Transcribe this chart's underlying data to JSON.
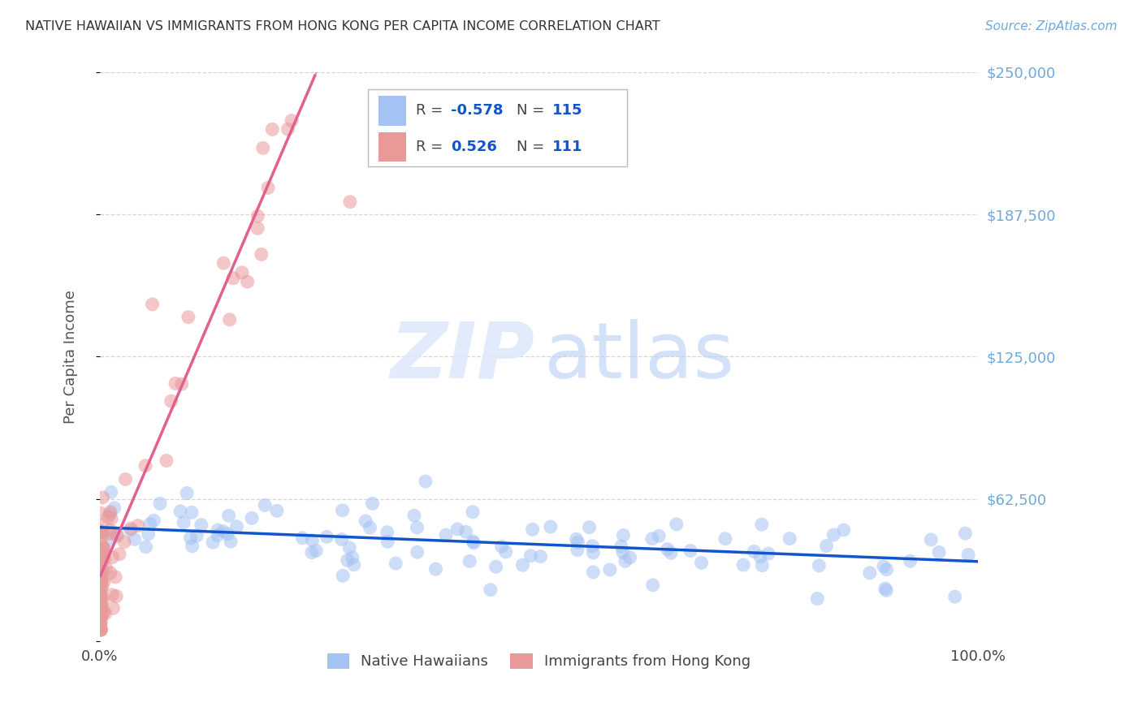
{
  "title": "NATIVE HAWAIIAN VS IMMIGRANTS FROM HONG KONG PER CAPITA INCOME CORRELATION CHART",
  "source": "Source: ZipAtlas.com",
  "ylabel": "Per Capita Income",
  "xlim": [
    0,
    1.0
  ],
  "ylim": [
    0,
    250000
  ],
  "blue_R": "-0.578",
  "blue_N": "115",
  "pink_R": "0.526",
  "pink_N": "111",
  "blue_color": "#a4c2f4",
  "pink_color": "#ea9999",
  "blue_line_color": "#1155cc",
  "pink_line_color": "#e06090",
  "legend_label_blue": "Native Hawaiians",
  "legend_label_pink": "Immigrants from Hong Kong",
  "background_color": "#ffffff",
  "grid_color": "#cccccc",
  "title_color": "#333333",
  "axis_label_color": "#555555",
  "right_tick_color": "#6fa8dc",
  "legend_text_color": "#1155cc"
}
